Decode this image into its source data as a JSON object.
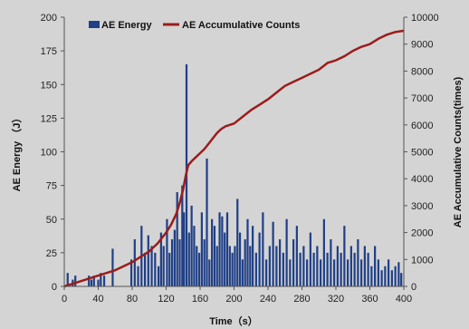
{
  "chart_data": {
    "type": "bar+line",
    "title": "",
    "xlabel": "Time（s）",
    "ylabel_left": "AE Energy （J）",
    "ylabel_right": "AE Accumulative Counts(times)",
    "xlim": [
      0,
      400
    ],
    "ylim_left": [
      0,
      200
    ],
    "ylim_right": [
      0,
      10000
    ],
    "x_ticks": [
      "0",
      "40",
      "80",
      "120",
      "160",
      "200",
      "240",
      "280",
      "320",
      "360",
      "400"
    ],
    "y_left_ticks": [
      "0",
      "25",
      "50",
      "75",
      "100",
      "125",
      "150",
      "175",
      "200"
    ],
    "y_right_ticks": [
      "0",
      "1000",
      "2000",
      "3000",
      "4000",
      "5000",
      "6000",
      "7000",
      "8000",
      "9000",
      "10000"
    ],
    "grid": false,
    "legend_position": "top-left",
    "colors": {
      "bars": "#1f3f86",
      "line": "#9c1c1c",
      "background": "#d4d4d4"
    },
    "series": [
      {
        "name": "AE Energy",
        "type": "bar",
        "axis": "left",
        "x": [
          4,
          10,
          13,
          29,
          32,
          35,
          40,
          43,
          47,
          57,
          79,
          83,
          87,
          91,
          95,
          99,
          103,
          107,
          111,
          114,
          117,
          121,
          124,
          127,
          130,
          133,
          136,
          139,
          141,
          144,
          147,
          150,
          153,
          156,
          159,
          162,
          165,
          168,
          171,
          174,
          177,
          180,
          183,
          186,
          189,
          192,
          195,
          198,
          201,
          204,
          207,
          210,
          213,
          216,
          219,
          222,
          226,
          230,
          234,
          238,
          242,
          246,
          250,
          254,
          258,
          262,
          266,
          270,
          274,
          278,
          282,
          286,
          290,
          294,
          298,
          302,
          306,
          310,
          314,
          318,
          322,
          326,
          330,
          334,
          338,
          342,
          346,
          350,
          354,
          358,
          362,
          366,
          370,
          374,
          378,
          382,
          386,
          390,
          394,
          397
        ],
        "values": [
          10,
          5,
          8,
          8,
          5,
          8,
          5,
          10,
          8,
          28,
          20,
          35,
          15,
          45,
          25,
          38,
          30,
          25,
          15,
          40,
          30,
          50,
          25,
          35,
          42,
          70,
          35,
          75,
          55,
          165,
          40,
          60,
          45,
          30,
          25,
          55,
          35,
          95,
          20,
          50,
          45,
          30,
          55,
          52,
          40,
          55,
          30,
          25,
          30,
          65,
          40,
          20,
          35,
          50,
          30,
          45,
          25,
          40,
          55,
          20,
          30,
          48,
          30,
          35,
          25,
          50,
          20,
          35,
          45,
          25,
          30,
          20,
          40,
          25,
          30,
          20,
          50,
          25,
          35,
          20,
          30,
          25,
          45,
          20,
          30,
          25,
          35,
          20,
          30,
          25,
          15,
          30,
          20,
          12,
          15,
          20,
          12,
          15,
          18,
          10
        ]
      },
      {
        "name": "AE Accumulative Counts",
        "type": "line",
        "axis": "right",
        "x": [
          0,
          20,
          40,
          60,
          80,
          90,
          100,
          110,
          120,
          126,
          132,
          136,
          140,
          143,
          146,
          150,
          155,
          160,
          165,
          170,
          175,
          180,
          185,
          190,
          195,
          200,
          210,
          220,
          230,
          240,
          250,
          260,
          270,
          280,
          290,
          300,
          310,
          320,
          330,
          340,
          350,
          360,
          370,
          380,
          390,
          400
        ],
        "values": [
          0,
          200,
          400,
          600,
          900,
          1100,
          1300,
          1600,
          2000,
          2300,
          2700,
          3100,
          3600,
          4100,
          4500,
          4650,
          4800,
          4950,
          5100,
          5300,
          5500,
          5700,
          5850,
          5950,
          6000,
          6050,
          6300,
          6550,
          6750,
          6950,
          7200,
          7450,
          7600,
          7750,
          7900,
          8050,
          8300,
          8400,
          8550,
          8750,
          8900,
          9000,
          9200,
          9350,
          9450,
          9500
        ]
      }
    ]
  }
}
